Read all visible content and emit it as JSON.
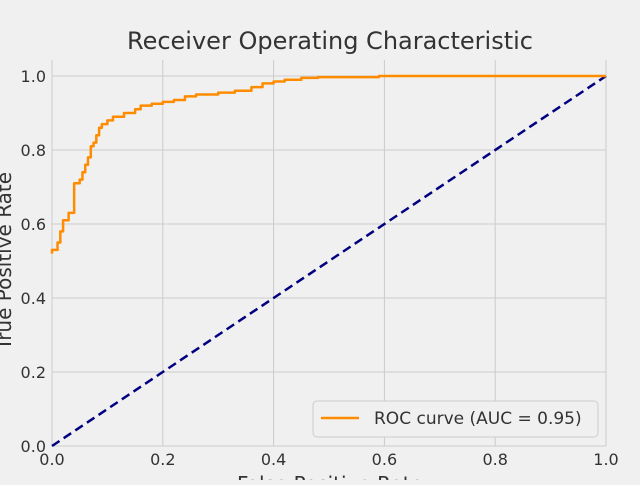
{
  "chart_data": {
    "type": "line",
    "title": "Receiver Operating Characteristic",
    "xlabel": "False Positive Rate",
    "ylabel": "True Positive Rate",
    "xlim": [
      0.0,
      1.0
    ],
    "ylim": [
      0.0,
      1.0
    ],
    "xticks": [
      "0.0",
      "0.2",
      "0.4",
      "0.6",
      "0.8",
      "1.0"
    ],
    "yticks": [
      "0.0",
      "0.2",
      "0.4",
      "0.6",
      "0.8",
      "1.0"
    ],
    "grid": true,
    "legend_position": "lower-right",
    "series": [
      {
        "name": "ROC curve (AUC = 0.95)",
        "color": "#ff8c00",
        "line_style": "solid",
        "x": [
          0.0,
          0.0,
          0.01,
          0.01,
          0.015,
          0.015,
          0.02,
          0.02,
          0.03,
          0.03,
          0.04,
          0.04,
          0.05,
          0.05,
          0.055,
          0.055,
          0.06,
          0.06,
          0.065,
          0.065,
          0.07,
          0.07,
          0.075,
          0.075,
          0.08,
          0.08,
          0.085,
          0.085,
          0.09,
          0.09,
          0.1,
          0.1,
          0.11,
          0.11,
          0.13,
          0.13,
          0.15,
          0.15,
          0.16,
          0.16,
          0.18,
          0.18,
          0.2,
          0.2,
          0.22,
          0.22,
          0.24,
          0.24,
          0.26,
          0.26,
          0.3,
          0.3,
          0.33,
          0.33,
          0.36,
          0.36,
          0.38,
          0.38,
          0.4,
          0.4,
          0.42,
          0.42,
          0.45,
          0.45,
          0.48,
          0.48,
          0.59,
          0.59,
          1.0
        ],
        "y": [
          0.52,
          0.53,
          0.53,
          0.55,
          0.55,
          0.58,
          0.58,
          0.61,
          0.61,
          0.63,
          0.63,
          0.71,
          0.71,
          0.72,
          0.72,
          0.74,
          0.74,
          0.76,
          0.76,
          0.78,
          0.78,
          0.81,
          0.81,
          0.82,
          0.82,
          0.84,
          0.84,
          0.86,
          0.86,
          0.87,
          0.87,
          0.88,
          0.88,
          0.89,
          0.89,
          0.9,
          0.9,
          0.91,
          0.91,
          0.92,
          0.92,
          0.925,
          0.925,
          0.93,
          0.93,
          0.935,
          0.935,
          0.945,
          0.945,
          0.95,
          0.95,
          0.955,
          0.955,
          0.96,
          0.96,
          0.97,
          0.97,
          0.98,
          0.98,
          0.985,
          0.985,
          0.99,
          0.99,
          0.995,
          0.995,
          0.997,
          0.997,
          1.0,
          1.0
        ]
      },
      {
        "name": "",
        "color": "#000080",
        "line_style": "dashed",
        "x": [
          0.0,
          1.0
        ],
        "y": [
          0.0,
          1.0
        ]
      }
    ]
  }
}
